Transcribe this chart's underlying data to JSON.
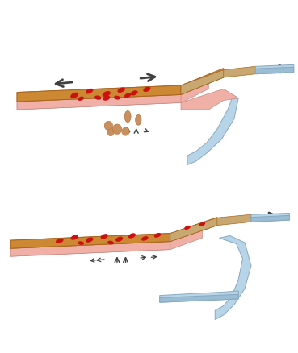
{
  "bg_color": "#ffffff",
  "brown_color": "#CC8833",
  "tan_color": "#C8A870",
  "pink_color": "#F0B0A8",
  "blue_color": "#B8D4E8",
  "blue_dark": "#9ABCD4",
  "red_color": "#CC1111",
  "beige_color": "#C89060",
  "arrow_color": "#404040",
  "outline_color": "#999999",
  "brown_edge": "#AA6620",
  "pink_edge": "#C88880",
  "blue_edge": "#88AABF"
}
